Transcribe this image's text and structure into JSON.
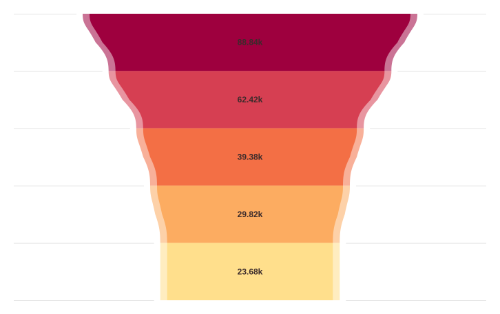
{
  "chart_data": {
    "type": "funnel",
    "title": "",
    "grid": true,
    "values": [
      88840,
      62420,
      39380,
      29820,
      23680
    ],
    "labels": [
      "88.84k",
      "62.42k",
      "39.38k",
      "29.82k",
      "23.68k"
    ],
    "colors": [
      "#9e003e",
      "#d63f52",
      "#f36f45",
      "#fcac61",
      "#ffdf8c"
    ]
  }
}
